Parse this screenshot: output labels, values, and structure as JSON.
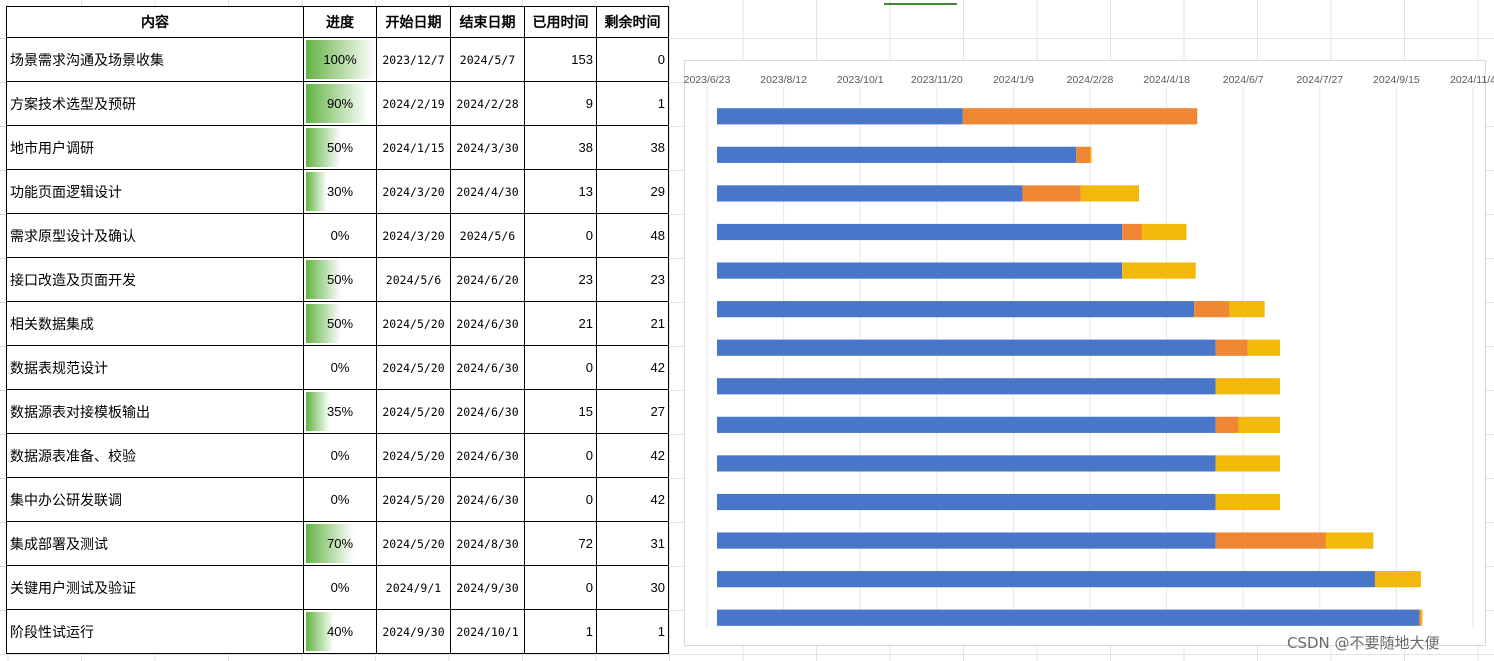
{
  "table": {
    "headers": [
      "内容",
      "进度",
      "开始日期",
      "结束日期",
      "已用时间",
      "剩余时间"
    ],
    "rows": [
      {
        "name": "场景需求沟通及场景收集",
        "progress": "100%",
        "start": "2023/12/7",
        "end": "2024/5/7",
        "used": "153",
        "remaining": "0"
      },
      {
        "name": "方案技术选型及预研",
        "progress": "90%",
        "start": "2024/2/19",
        "end": "2024/2/28",
        "used": "9",
        "remaining": "1"
      },
      {
        "name": "地市用户调研",
        "progress": "50%",
        "start": "2024/1/15",
        "end": "2024/3/30",
        "used": "38",
        "remaining": "38"
      },
      {
        "name": "功能页面逻辑设计",
        "progress": "30%",
        "start": "2024/3/20",
        "end": "2024/4/30",
        "used": "13",
        "remaining": "29"
      },
      {
        "name": "需求原型设计及确认",
        "progress": "0%",
        "start": "2024/3/20",
        "end": "2024/5/6",
        "used": "0",
        "remaining": "48"
      },
      {
        "name": "接口改造及页面开发",
        "progress": "50%",
        "start": "2024/5/6",
        "end": "2024/6/20",
        "used": "23",
        "remaining": "23"
      },
      {
        "name": "相关数据集成",
        "progress": "50%",
        "start": "2024/5/20",
        "end": "2024/6/30",
        "used": "21",
        "remaining": "21"
      },
      {
        "name": "数据表规范设计",
        "progress": "0%",
        "start": "2024/5/20",
        "end": "2024/6/30",
        "used": "0",
        "remaining": "42"
      },
      {
        "name": "数据源表对接模板输出",
        "progress": "35%",
        "start": "2024/5/20",
        "end": "2024/6/30",
        "used": "15",
        "remaining": "27"
      },
      {
        "name": "数据源表准备、校验",
        "progress": "0%",
        "start": "2024/5/20",
        "end": "2024/6/30",
        "used": "0",
        "remaining": "42"
      },
      {
        "name": "集中办公研发联调",
        "progress": "0%",
        "start": "2024/5/20",
        "end": "2024/6/30",
        "used": "0",
        "remaining": "42"
      },
      {
        "name": "集成部署及测试",
        "progress": "70%",
        "start": "2024/5/20",
        "end": "2024/8/30",
        "used": "72",
        "remaining": "31"
      },
      {
        "name": "关键用户测试及验证",
        "progress": "0%",
        "start": "2024/9/1",
        "end": "2024/9/30",
        "used": "0",
        "remaining": "30"
      },
      {
        "name": "阶段性试运行",
        "progress": "40%",
        "start": "2024/9/30",
        "end": "2024/10/1",
        "used": "1",
        "remaining": "1"
      }
    ]
  },
  "chart_data": {
    "type": "bar",
    "orientation": "horizontal-stacked",
    "x_axis": {
      "ticks": [
        "2023/6/23",
        "2023/8/12",
        "2023/10/1",
        "2023/11/20",
        "2024/1/9",
        "2024/2/28",
        "2024/4/18",
        "2024/6/7",
        "2024/7/27",
        "2024/9/15",
        "2024/11/4"
      ],
      "range": [
        "2023/6/23",
        "2024/11/4"
      ],
      "position": "top",
      "grid": true
    },
    "y_axis": {
      "reversed": true,
      "labels_visible": false
    },
    "colors": {
      "base": "#4a76c9",
      "used": "#ef8633",
      "remaining": "#f2b90a"
    },
    "bars": [
      {
        "start": "2023/12/7",
        "used": 153,
        "remaining": 0
      },
      {
        "start": "2024/2/19",
        "used": 9,
        "remaining": 1
      },
      {
        "start": "2024/1/15",
        "used": 38,
        "remaining": 38
      },
      {
        "start": "2024/3/20",
        "used": 13,
        "remaining": 29
      },
      {
        "start": "2024/3/20",
        "used": 0,
        "remaining": 48
      },
      {
        "start": "2024/5/6",
        "used": 23,
        "remaining": 23
      },
      {
        "start": "2024/5/20",
        "used": 21,
        "remaining": 21
      },
      {
        "start": "2024/5/20",
        "used": 0,
        "remaining": 42
      },
      {
        "start": "2024/5/20",
        "used": 15,
        "remaining": 27
      },
      {
        "start": "2024/5/20",
        "used": 0,
        "remaining": 42
      },
      {
        "start": "2024/5/20",
        "used": 0,
        "remaining": 42
      },
      {
        "start": "2024/5/20",
        "used": 72,
        "remaining": 31
      },
      {
        "start": "2024/9/1",
        "used": 0,
        "remaining": 30
      },
      {
        "start": "2024/9/30",
        "used": 1,
        "remaining": 1
      }
    ]
  },
  "watermark": "CSDN @不要随地大便"
}
